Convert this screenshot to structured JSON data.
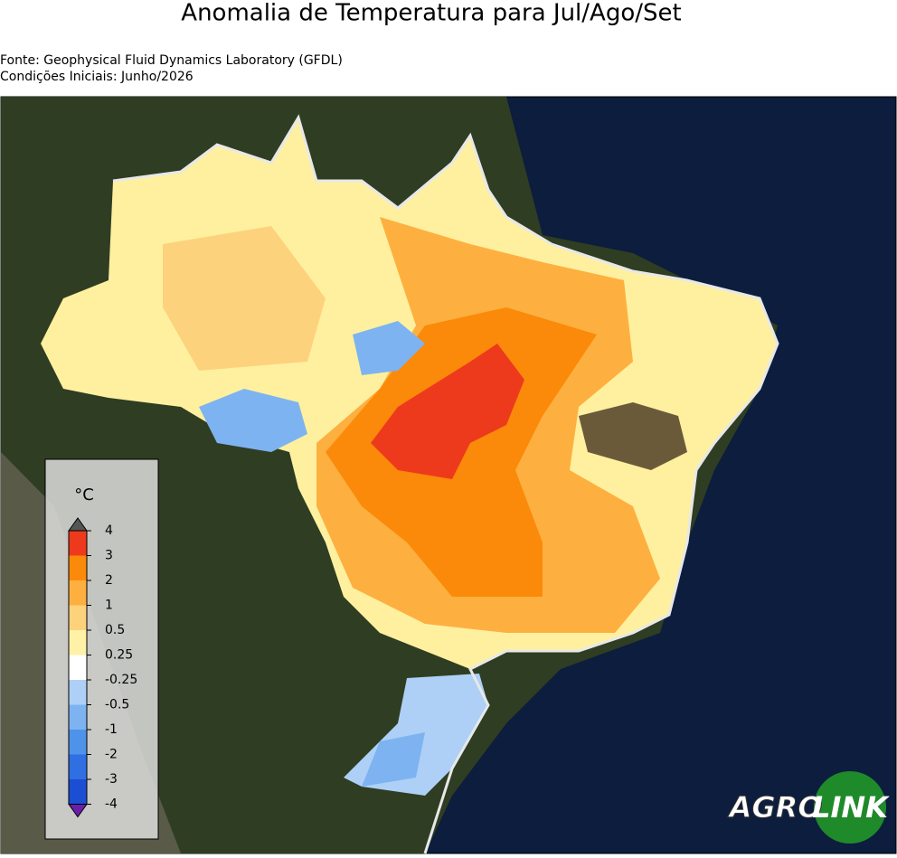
{
  "title": "Anomalia de Temperatura para Jul/Ago/Set",
  "source": "Fonte: Geophysical Fluid Dynamics Laboratory (GFDL)",
  "initial_conditions": "Condições Iniciais: Junho/2026",
  "legend": {
    "unit": "°C",
    "levels": [
      4,
      3,
      2,
      1,
      0.5,
      0.25,
      -0.25,
      -0.5,
      -1,
      -2,
      -3,
      -4
    ],
    "colors": [
      "#ee3a1c",
      "#fb8a0a",
      "#fdb040",
      "#fdd27c",
      "#fff2a6",
      "#ffffff",
      "#aed0f6",
      "#7db3f0",
      "#4e92ea",
      "#2f6fe2",
      "#1b4ed2"
    ],
    "over_color": "#555555",
    "under_color": "#6a1fa8"
  },
  "logo": {
    "left": "AGRO",
    "right": "LINK"
  }
}
